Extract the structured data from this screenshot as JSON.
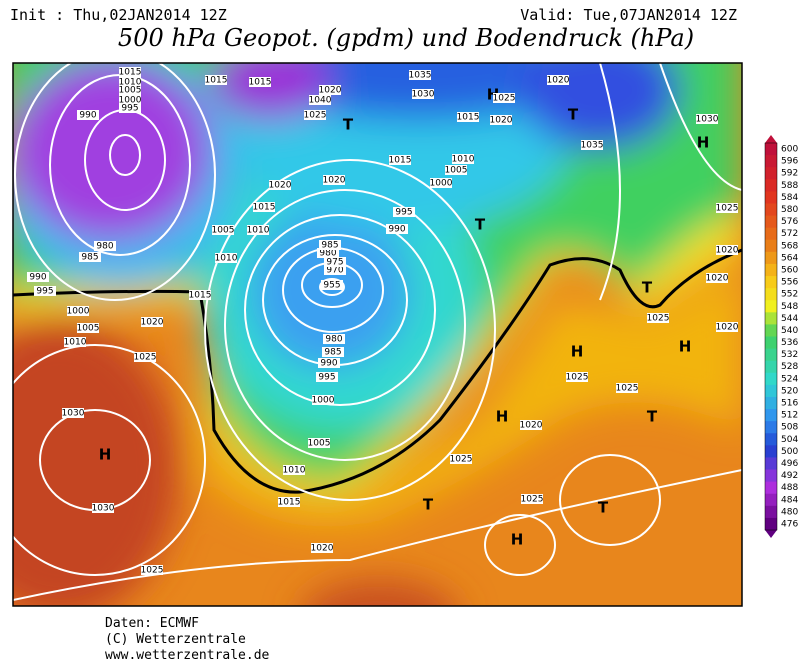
{
  "header": {
    "init": "Init : Thu,02JAN2014 12Z",
    "valid": "Valid: Tue,07JAN2014 12Z",
    "title": "500 hPa Geopot. (gpdm) und Bodendruck (hPa)"
  },
  "map": {
    "highs": [
      "H",
      "H",
      "H",
      "H",
      "H",
      "H",
      "H"
    ],
    "lows": [
      "T",
      "T",
      "T",
      "T",
      "T",
      "T",
      "T"
    ],
    "isobar_labels": [
      1015,
      1010,
      1005,
      1000,
      995,
      990,
      985,
      980,
      990,
      995,
      1000,
      1005,
      1010,
      1015,
      1020,
      1025,
      1030,
      1030,
      1025,
      1020,
      1015,
      1010,
      1005,
      1000,
      995,
      990,
      985,
      980,
      955,
      970,
      975,
      980,
      985,
      990,
      995,
      1000,
      1005,
      1010,
      1015,
      1020,
      1025,
      1020,
      1020,
      1015,
      1010,
      1005,
      1010,
      1015,
      1015,
      1040,
      1035,
      1030,
      1025,
      1020,
      1015,
      1020,
      1035,
      1030,
      1025,
      1020,
      1020,
      1020,
      1025,
      1025,
      1025,
      1020,
      1025,
      1025
    ]
  },
  "colorbar": {
    "ticks": [
      600,
      596,
      592,
      588,
      584,
      580,
      576,
      572,
      568,
      564,
      560,
      556,
      552,
      548,
      544,
      540,
      536,
      532,
      528,
      524,
      520,
      516,
      512,
      508,
      504,
      500,
      496,
      492,
      488,
      484,
      480,
      476
    ]
  },
  "footer": {
    "source": "Daten: ECMWF",
    "copyright": "(C) Wetterzentrale",
    "url": "www.wetterzentrale.de"
  }
}
